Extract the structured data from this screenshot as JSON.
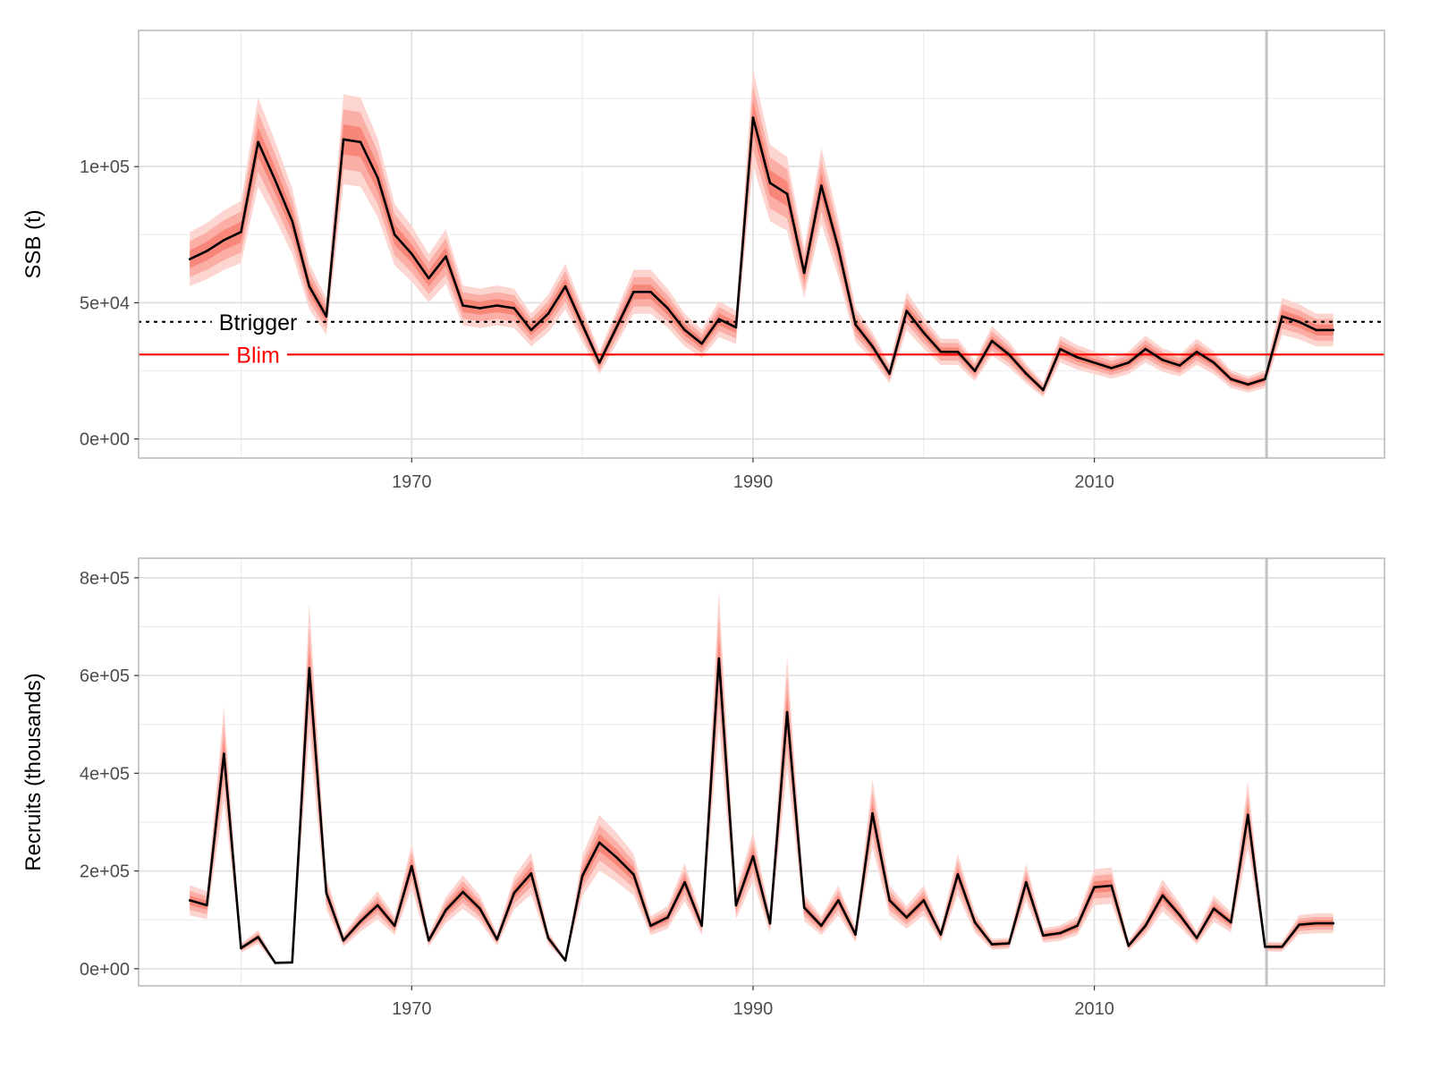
{
  "colors": {
    "ribbon_outer": "#fdd5d0",
    "ribbon_mid": "#fbaea5",
    "ribbon_inner": "#f8877a",
    "line": "#000000",
    "btrigger": "#000000",
    "blim": "#ff0000",
    "grid": "#ebebeb",
    "panel_border": "#b3b3b3",
    "current_year_line": "#bfbfbf"
  },
  "chart_data": [
    {
      "type": "line",
      "ylabel": "SSB (t)",
      "xlim": [
        1954,
        2027
      ],
      "ylim": [
        -7000,
        150000
      ],
      "x_ticks": [
        1970,
        1990,
        2010
      ],
      "x_tick_labels": [
        "1970",
        "1990",
        "2010"
      ],
      "y_ticks": [
        0,
        50000,
        100000
      ],
      "y_tick_labels": [
        "0e+00",
        "5e+04",
        "1e+05"
      ],
      "grid": true,
      "current_year_line": 2020.1,
      "reference_lines": [
        {
          "label": "Btrigger",
          "value": 43000,
          "style": "dotted",
          "label_x": 1961
        },
        {
          "label": "Blim",
          "value": 31000,
          "style": "solid",
          "label_x": 1961
        }
      ],
      "ribbon_widths": [
        0.05,
        0.1,
        0.15
      ],
      "x": [
        1957,
        1958,
        1959,
        1960,
        1961,
        1962,
        1963,
        1964,
        1965,
        1966,
        1967,
        1968,
        1969,
        1970,
        1971,
        1972,
        1973,
        1974,
        1975,
        1976,
        1977,
        1978,
        1979,
        1980,
        1981,
        1982,
        1983,
        1984,
        1985,
        1986,
        1987,
        1988,
        1989,
        1990,
        1991,
        1992,
        1993,
        1994,
        1995,
        1996,
        1997,
        1998,
        1999,
        2000,
        2001,
        2002,
        2003,
        2004,
        2005,
        2006,
        2007,
        2008,
        2009,
        2010,
        2011,
        2012,
        2013,
        2014,
        2015,
        2016,
        2017,
        2018,
        2019,
        2020,
        2021,
        2022,
        2023,
        2024
      ],
      "values": [
        66000,
        69000,
        73000,
        76000,
        109000,
        95000,
        80000,
        56000,
        45000,
        110000,
        109000,
        96000,
        75000,
        68000,
        59000,
        67000,
        49000,
        48000,
        49000,
        48000,
        40000,
        46000,
        56000,
        42000,
        28000,
        41000,
        54000,
        54000,
        48000,
        40000,
        35000,
        44000,
        41000,
        118000,
        94000,
        90000,
        61000,
        93000,
        70000,
        42000,
        34000,
        24000,
        47000,
        39000,
        32000,
        32000,
        25000,
        36000,
        31000,
        24000,
        18000,
        33000,
        30000,
        28000,
        26000,
        28000,
        33000,
        29000,
        27000,
        32000,
        28000,
        22000,
        20000,
        22000,
        45000,
        43000,
        40000,
        40000
      ]
    },
    {
      "type": "line",
      "ylabel": "Recruits (thousands)",
      "xlim": [
        1954,
        2027
      ],
      "ylim": [
        -35000,
        840000
      ],
      "x_ticks": [
        1970,
        1990,
        2010
      ],
      "x_tick_labels": [
        "1970",
        "1990",
        "2010"
      ],
      "y_ticks": [
        0,
        200000,
        400000,
        600000,
        800000
      ],
      "y_tick_labels": [
        "0e+00",
        "2e+05",
        "4e+05",
        "6e+05",
        "8e+05"
      ],
      "grid": true,
      "current_year_line": 2020.1,
      "ribbon_widths": [
        0.07,
        0.14,
        0.22
      ],
      "x": [
        1957,
        1958,
        1959,
        1960,
        1961,
        1962,
        1963,
        1964,
        1965,
        1966,
        1967,
        1968,
        1969,
        1970,
        1971,
        1972,
        1973,
        1974,
        1975,
        1976,
        1977,
        1978,
        1979,
        1980,
        1981,
        1982,
        1983,
        1984,
        1985,
        1986,
        1987,
        1988,
        1989,
        1990,
        1991,
        1992,
        1993,
        1994,
        1995,
        1996,
        1997,
        1998,
        1999,
        2000,
        2001,
        2002,
        2003,
        2004,
        2005,
        2006,
        2007,
        2008,
        2009,
        2010,
        2011,
        2012,
        2013,
        2014,
        2015,
        2016,
        2017,
        2018,
        2019,
        2020,
        2021,
        2022,
        2023,
        2024
      ],
      "values": [
        140000,
        130000,
        440000,
        42000,
        65000,
        12000,
        13000,
        615000,
        155000,
        58000,
        97000,
        130000,
        88000,
        210000,
        58000,
        120000,
        157000,
        123000,
        60000,
        155000,
        195000,
        63000,
        17000,
        190000,
        258000,
        228000,
        193000,
        88000,
        105000,
        177000,
        88000,
        635000,
        130000,
        230000,
        93000,
        525000,
        125000,
        88000,
        140000,
        70000,
        318000,
        140000,
        105000,
        140000,
        70000,
        193000,
        95000,
        50000,
        52000,
        177000,
        68000,
        73000,
        88000,
        167000,
        170000,
        47000,
        88000,
        150000,
        110000,
        63000,
        123000,
        95000,
        315000,
        45000,
        45000,
        90000,
        93000,
        93000
      ]
    }
  ]
}
